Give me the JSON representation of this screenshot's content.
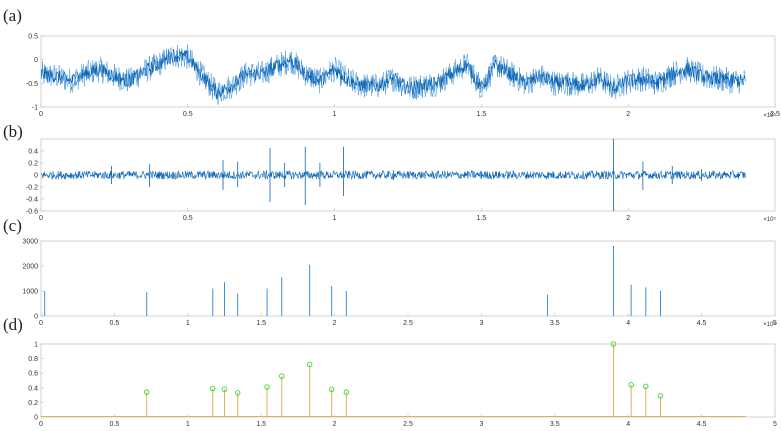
{
  "colors": {
    "signal": "#0a64b4",
    "signal_light": "#3d8fd6",
    "stem": "#e0b060",
    "marker": "#33dd33",
    "axis": "#bbbbbb"
  },
  "chart_data": [
    {
      "panel_label": "(a)",
      "type": "line",
      "description": "noisy waveform",
      "xlim": [
        0,
        2.5
      ],
      "ylim": [
        -1,
        0.5
      ],
      "x_ticks": [
        "0",
        "0.5",
        "1",
        "1.5",
        "2",
        "2.5"
      ],
      "y_ticks": [
        "0.5",
        "0",
        "-0.5",
        "-1"
      ],
      "x_exponent": "×10⁵",
      "trend": {
        "x": [
          0,
          0.05,
          0.1,
          0.15,
          0.2,
          0.25,
          0.3,
          0.35,
          0.4,
          0.45,
          0.5,
          0.55,
          0.6,
          0.65,
          0.7,
          0.75,
          0.8,
          0.85,
          0.9,
          0.95,
          1.0,
          1.05,
          1.1,
          1.15,
          1.2,
          1.25,
          1.3,
          1.35,
          1.4,
          1.45,
          1.5,
          1.55,
          1.6,
          1.65,
          1.7,
          1.75,
          1.8,
          1.85,
          1.9,
          1.95,
          2.0,
          2.05,
          2.1,
          2.15,
          2.2,
          2.25,
          2.3,
          2.35,
          2.4
        ],
        "y": [
          -0.3,
          -0.35,
          -0.45,
          -0.3,
          -0.2,
          -0.35,
          -0.45,
          -0.25,
          -0.1,
          0.1,
          0.05,
          -0.35,
          -0.7,
          -0.55,
          -0.3,
          -0.3,
          -0.15,
          0.0,
          -0.3,
          -0.45,
          -0.2,
          -0.45,
          -0.55,
          -0.55,
          -0.4,
          -0.6,
          -0.55,
          -0.5,
          -0.3,
          -0.1,
          -0.6,
          -0.1,
          -0.3,
          -0.5,
          -0.35,
          -0.5,
          -0.5,
          -0.55,
          -0.4,
          -0.6,
          -0.45,
          -0.4,
          -0.5,
          -0.3,
          -0.2,
          -0.35,
          -0.4,
          -0.45,
          -0.45
        ]
      }
    },
    {
      "panel_label": "(b)",
      "type": "line",
      "description": "noise band with spikes",
      "xlim": [
        0,
        2.5
      ],
      "ylim": [
        -0.6,
        0.6
      ],
      "x_ticks": [
        "0",
        "0.5",
        "1",
        "1.5",
        "2"
      ],
      "y_ticks": [
        "0.4",
        "0.2",
        "0",
        "-0.2",
        "-0.4",
        "-0.6"
      ],
      "x_exponent": "×10⁵",
      "spikes": {
        "x": [
          0.24,
          0.37,
          0.62,
          0.67,
          0.78,
          0.83,
          0.9,
          0.95,
          1.03,
          1.2,
          1.5,
          1.95,
          2.05,
          2.15,
          2.25
        ],
        "top": [
          0.15,
          0.18,
          0.25,
          0.22,
          0.45,
          0.2,
          0.47,
          0.2,
          0.47,
          0.08,
          0.06,
          0.6,
          0.22,
          0.15,
          0.1
        ],
        "bottom": [
          -0.15,
          -0.2,
          -0.25,
          -0.2,
          -0.45,
          -0.2,
          -0.5,
          -0.2,
          -0.35,
          -0.08,
          -0.06,
          -0.6,
          -0.25,
          -0.15,
          -0.1
        ]
      }
    },
    {
      "panel_label": "(c)",
      "type": "bar",
      "description": "spectrum peaks",
      "xlim": [
        0,
        5
      ],
      "ylim": [
        0,
        3000
      ],
      "x_ticks": [
        "0",
        "0.5",
        "1",
        "1.5",
        "2",
        "2.5",
        "3",
        "3.5",
        "4",
        "4.5",
        "5"
      ],
      "y_ticks": [
        "3000",
        "2000",
        "1000",
        "0"
      ],
      "x_exponent": "×10⁴",
      "x": [
        0.025,
        0.72,
        1.17,
        1.25,
        1.34,
        1.54,
        1.64,
        1.83,
        1.98,
        2.08,
        3.45,
        3.9,
        4.02,
        4.12,
        4.22
      ],
      "values": [
        1000,
        950,
        1100,
        1350,
        900,
        1100,
        1550,
        2050,
        1200,
        1000,
        850,
        2800,
        1250,
        1150,
        1000
      ]
    },
    {
      "panel_label": "(d)",
      "type": "bar",
      "description": "normalized peaks with circle markers",
      "xlim": [
        0,
        5
      ],
      "ylim": [
        0,
        1
      ],
      "x_ticks": [
        "0",
        "0.5",
        "1",
        "1.5",
        "2",
        "2.5",
        "3",
        "3.5",
        "4",
        "4.5",
        "5"
      ],
      "y_ticks": [
        "1",
        "0.8",
        "0.6",
        "0.4",
        "0.2",
        "0"
      ],
      "x": [
        0.72,
        1.17,
        1.25,
        1.34,
        1.54,
        1.64,
        1.83,
        1.98,
        2.08,
        3.9,
        4.02,
        4.12,
        4.22
      ],
      "values": [
        0.34,
        0.39,
        0.38,
        0.33,
        0.41,
        0.56,
        0.72,
        0.38,
        0.34,
        1.0,
        0.44,
        0.42,
        0.29
      ]
    }
  ]
}
